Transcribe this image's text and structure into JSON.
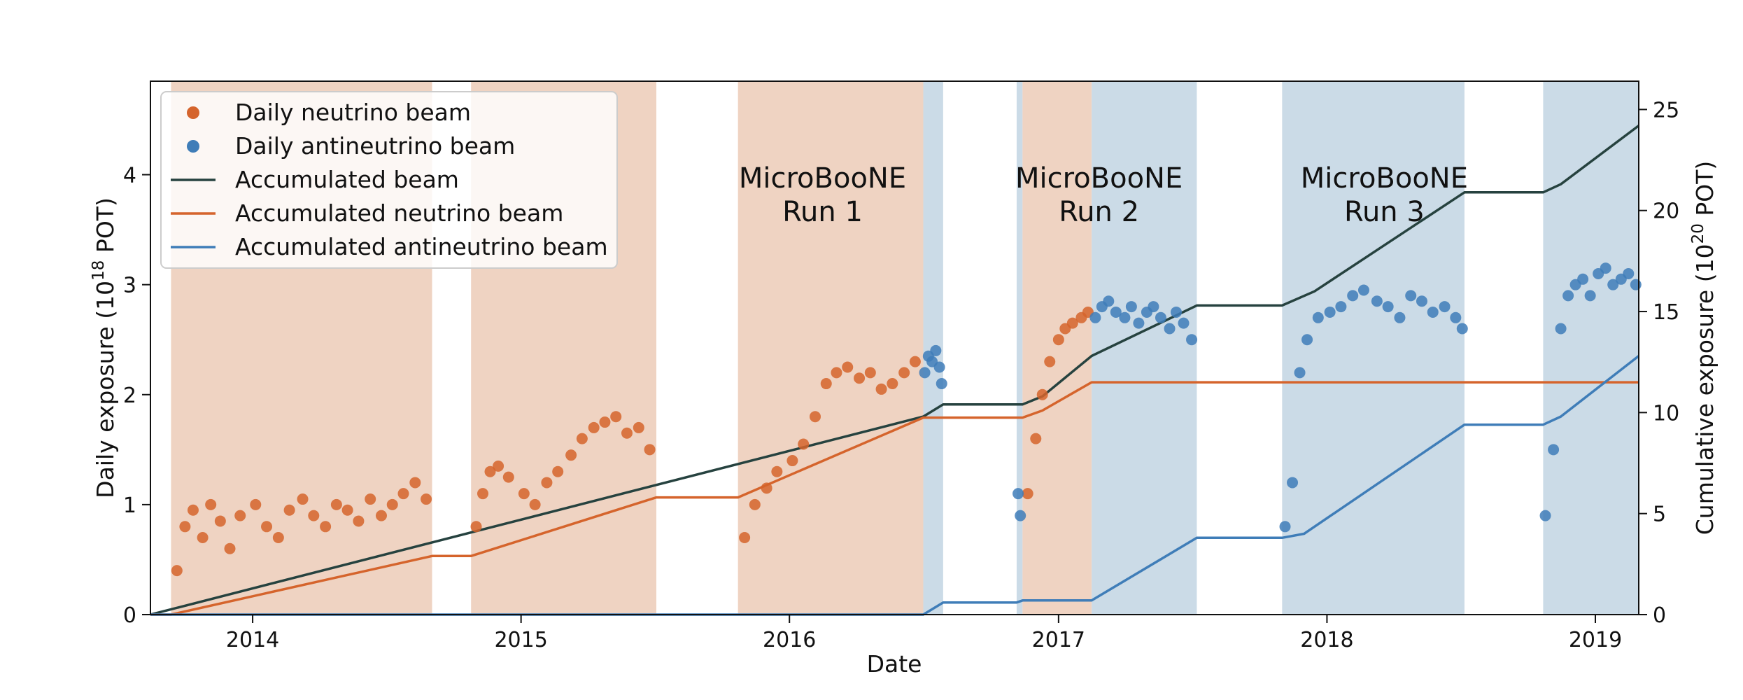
{
  "chart_data": {
    "type": "scatter",
    "xlabel": "Date",
    "ylabel": "Daily exposure (10^18 POT)",
    "ylabel_parts": {
      "pre": "Daily exposure (10",
      "sup": "18",
      "post": " POT)"
    },
    "y2label": "Cumulative exposure (10^20 POT)",
    "y2label_parts": {
      "pre": "Cumulative exposure (10",
      "sup": "20",
      "post": " POT)"
    },
    "xlim": [
      "2013-08-15",
      "2019-03-01"
    ],
    "ylim": [
      0,
      4.85
    ],
    "y2lim": [
      0,
      26.4
    ],
    "x_ticks": [
      "2014-01-01",
      "2015-01-01",
      "2016-01-01",
      "2017-01-01",
      "2018-01-01",
      "2019-01-01"
    ],
    "x_tick_labels": [
      "2014",
      "2015",
      "2016",
      "2017",
      "2018",
      "2019"
    ],
    "y_ticks": [
      0,
      1,
      2,
      3,
      4
    ],
    "y2_ticks": [
      0,
      5,
      10,
      15,
      20,
      25
    ],
    "grid": false,
    "legend_position": "top-left",
    "colors": {
      "neutrino": "#d5642c",
      "antineutrino": "#3f7db8",
      "accumulated": "#26423f",
      "neutrino_span": "#efd3c2",
      "antineutrino_span": "#cbdbe7"
    },
    "legend": [
      {
        "label": "Daily neutrino beam",
        "marker": "dot",
        "color": "#d5642c"
      },
      {
        "label": "Daily antineutrino beam",
        "marker": "dot",
        "color": "#3f7db8"
      },
      {
        "label": "Accumulated beam",
        "marker": "line",
        "color": "#26423f"
      },
      {
        "label": "Accumulated neutrino beam",
        "marker": "line",
        "color": "#d5642c"
      },
      {
        "label": "Accumulated antineutrino beam",
        "marker": "line",
        "color": "#3f7db8"
      }
    ],
    "annotations": [
      {
        "line1": "MicroBooNE",
        "line2": "Run 1",
        "date": "2016-02-15"
      },
      {
        "line1": "MicroBooNE",
        "line2": "Run 2",
        "date": "2017-02-25"
      },
      {
        "line1": "MicroBooNE",
        "line2": "Run 3",
        "date": "2018-03-20"
      }
    ],
    "beam_periods": [
      {
        "beam": "neutrino",
        "start": "2013-09-12",
        "end": "2014-09-02"
      },
      {
        "beam": "neutrino",
        "start": "2014-10-25",
        "end": "2015-07-04"
      },
      {
        "beam": "neutrino",
        "start": "2015-10-23",
        "end": "2016-07-01"
      },
      {
        "beam": "antineutrino",
        "start": "2016-07-01",
        "end": "2016-07-28"
      },
      {
        "beam": "antineutrino",
        "start": "2016-11-05",
        "end": "2016-11-13"
      },
      {
        "beam": "neutrino",
        "start": "2016-11-13",
        "end": "2017-02-15"
      },
      {
        "beam": "antineutrino",
        "start": "2017-02-15",
        "end": "2017-07-08"
      },
      {
        "beam": "antineutrino",
        "start": "2017-11-01",
        "end": "2018-07-07"
      },
      {
        "beam": "antineutrino",
        "start": "2018-10-22",
        "end": "2019-03-01"
      }
    ],
    "series": [
      {
        "name": "Accumulated beam",
        "axis": "right",
        "x": [
          "2013-08-15",
          "2016-07-01",
          "2016-07-28",
          "2016-11-13",
          "2016-12-10",
          "2017-02-15",
          "2017-07-08",
          "2017-11-01",
          "2017-12-15",
          "2018-07-07",
          "2018-10-22",
          "2018-11-15",
          "2019-03-01"
        ],
        "y": [
          0,
          9.8,
          10.4,
          10.4,
          10.8,
          12.8,
          15.3,
          15.3,
          16.0,
          20.9,
          20.9,
          21.3,
          24.2
        ]
      },
      {
        "name": "Accumulated neutrino beam",
        "axis": "right",
        "x": [
          "2013-08-15",
          "2013-09-12",
          "2014-09-02",
          "2014-10-25",
          "2015-07-04",
          "2015-10-23",
          "2016-07-01",
          "2016-11-13",
          "2016-12-10",
          "2017-02-15",
          "2019-03-01"
        ],
        "y": [
          0,
          0,
          2.9,
          2.9,
          5.8,
          5.8,
          9.75,
          9.75,
          10.1,
          11.5,
          11.5
        ]
      },
      {
        "name": "Accumulated antineutrino beam",
        "axis": "right",
        "x": [
          "2013-08-15",
          "2016-07-01",
          "2016-07-28",
          "2016-11-05",
          "2016-11-13",
          "2017-02-15",
          "2017-07-08",
          "2017-11-01",
          "2017-12-01",
          "2018-07-07",
          "2018-10-22",
          "2018-11-15",
          "2019-03-01"
        ],
        "y": [
          0,
          0,
          0.6,
          0.6,
          0.7,
          0.7,
          3.8,
          3.8,
          4.0,
          9.4,
          9.4,
          9.8,
          12.8
        ]
      },
      {
        "name": "Daily neutrino beam",
        "axis": "left",
        "marker": "dot",
        "x": [
          "2013-09-20",
          "2013-10-01",
          "2013-10-12",
          "2013-10-25",
          "2013-11-05",
          "2013-11-18",
          "2013-12-01",
          "2013-12-15",
          "2014-01-05",
          "2014-01-20",
          "2014-02-05",
          "2014-02-20",
          "2014-03-10",
          "2014-03-25",
          "2014-04-10",
          "2014-04-25",
          "2014-05-10",
          "2014-05-25",
          "2014-06-10",
          "2014-06-25",
          "2014-07-10",
          "2014-07-25",
          "2014-08-10",
          "2014-08-25",
          "2014-11-01",
          "2014-11-10",
          "2014-11-20",
          "2014-12-01",
          "2014-12-15",
          "2015-01-05",
          "2015-01-20",
          "2015-02-05",
          "2015-02-20",
          "2015-03-10",
          "2015-03-25",
          "2015-04-10",
          "2015-04-25",
          "2015-05-10",
          "2015-05-25",
          "2015-06-10",
          "2015-06-25",
          "2015-11-01",
          "2015-11-15",
          "2015-12-01",
          "2015-12-15",
          "2016-01-05",
          "2016-01-20",
          "2016-02-05",
          "2016-02-20",
          "2016-03-05",
          "2016-03-20",
          "2016-04-05",
          "2016-04-20",
          "2016-05-05",
          "2016-05-20",
          "2016-06-05",
          "2016-06-20",
          "2016-11-20",
          "2016-12-01",
          "2016-12-10",
          "2016-12-20",
          "2017-01-01",
          "2017-01-10",
          "2017-01-20",
          "2017-02-01",
          "2017-02-10"
        ],
        "y": [
          0.4,
          0.8,
          0.95,
          0.7,
          1.0,
          0.85,
          0.6,
          0.9,
          1.0,
          0.8,
          0.7,
          0.95,
          1.05,
          0.9,
          0.8,
          1.0,
          0.95,
          0.85,
          1.05,
          0.9,
          1.0,
          1.1,
          1.2,
          1.05,
          0.8,
          1.1,
          1.3,
          1.35,
          1.25,
          1.1,
          1.0,
          1.2,
          1.3,
          1.45,
          1.6,
          1.7,
          1.75,
          1.8,
          1.65,
          1.7,
          1.5,
          0.7,
          1.0,
          1.15,
          1.3,
          1.4,
          1.55,
          1.8,
          2.1,
          2.2,
          2.25,
          2.15,
          2.2,
          2.05,
          2.1,
          2.2,
          2.3,
          1.1,
          1.6,
          2.0,
          2.3,
          2.5,
          2.6,
          2.65,
          2.7,
          2.75
        ]
      },
      {
        "name": "Daily antineutrino beam",
        "axis": "left",
        "marker": "dot",
        "x": [
          "2016-07-03",
          "2016-07-08",
          "2016-07-13",
          "2016-07-18",
          "2016-07-23",
          "2016-07-26",
          "2016-11-07",
          "2016-11-10",
          "2017-02-20",
          "2017-03-01",
          "2017-03-10",
          "2017-03-20",
          "2017-04-01",
          "2017-04-10",
          "2017-04-20",
          "2017-05-01",
          "2017-05-10",
          "2017-05-20",
          "2017-06-01",
          "2017-06-10",
          "2017-06-20",
          "2017-07-01",
          "2017-11-05",
          "2017-11-15",
          "2017-11-25",
          "2017-12-05",
          "2017-12-20",
          "2018-01-05",
          "2018-01-20",
          "2018-02-05",
          "2018-02-20",
          "2018-03-10",
          "2018-03-25",
          "2018-04-10",
          "2018-04-25",
          "2018-05-10",
          "2018-05-25",
          "2018-06-10",
          "2018-06-25",
          "2018-07-04",
          "2018-10-25",
          "2018-11-05",
          "2018-11-15",
          "2018-11-25",
          "2018-12-05",
          "2018-12-15",
          "2018-12-25",
          "2019-01-05",
          "2019-01-15",
          "2019-01-25",
          "2019-02-05",
          "2019-02-15",
          "2019-02-25"
        ],
        "y": [
          2.2,
          2.35,
          2.3,
          2.4,
          2.25,
          2.1,
          1.1,
          0.9,
          2.7,
          2.8,
          2.85,
          2.75,
          2.7,
          2.8,
          2.65,
          2.75,
          2.8,
          2.7,
          2.6,
          2.75,
          2.65,
          2.5,
          0.8,
          1.2,
          2.2,
          2.5,
          2.7,
          2.75,
          2.8,
          2.9,
          2.95,
          2.85,
          2.8,
          2.7,
          2.9,
          2.85,
          2.75,
          2.8,
          2.7,
          2.6,
          0.9,
          1.5,
          2.6,
          2.9,
          3.0,
          3.05,
          2.9,
          3.1,
          3.15,
          3.0,
          3.05,
          3.1,
          3.0
        ]
      }
    ]
  }
}
